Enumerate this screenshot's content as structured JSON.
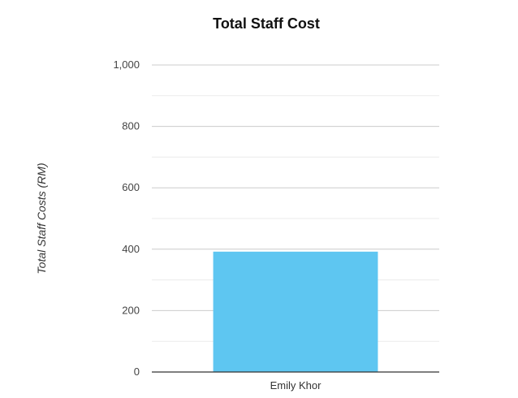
{
  "chart_data": {
    "type": "bar",
    "title": "Total Staff Cost",
    "xlabel": "",
    "ylabel": "Total Staff Costs (RM)",
    "categories": [
      "Emily Khor"
    ],
    "values": [
      392
    ],
    "ylim": [
      0,
      1000
    ],
    "y_ticks": [
      0,
      200,
      400,
      600,
      800,
      1000
    ],
    "y_tick_labels": [
      "0",
      "200",
      "400",
      "600",
      "800",
      "1,000"
    ],
    "grid": true,
    "minor_grid": true,
    "legend": "none",
    "colors": {
      "bar": "#5EC6F1",
      "grid_major": "#CCCCCC",
      "grid_minor": "#EBEBEB",
      "axis": "#333333"
    }
  }
}
